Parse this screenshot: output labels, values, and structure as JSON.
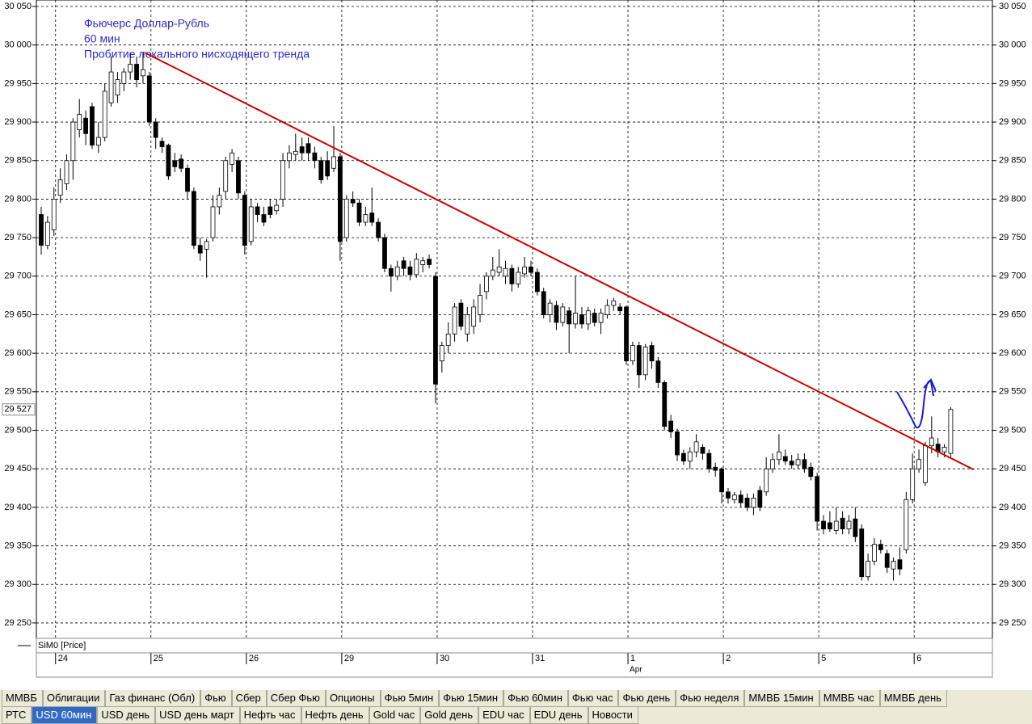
{
  "chart_data": {
    "type": "candlestick",
    "annotation": [
      "Фьючерс Доллар-Рубль",
      "60 мин",
      "Пробитие   локального нисходящего тренда"
    ],
    "legend": "SiM0 [Price]",
    "categories": [
      null,
      null,
      "24",
      null,
      null,
      null,
      null,
      null,
      null,
      null,
      null,
      null,
      null,
      null,
      null,
      null,
      null,
      "25",
      null,
      null,
      null,
      null,
      null,
      null,
      null,
      null,
      null,
      null,
      null,
      null,
      null,
      null,
      "26",
      null,
      null,
      null,
      null,
      null,
      null,
      null,
      null,
      null,
      null,
      null,
      null,
      null,
      null,
      "29",
      null,
      null,
      null,
      null,
      null,
      null,
      null,
      null,
      null,
      null,
      null,
      null,
      null,
      null,
      "30",
      null,
      null,
      null,
      null,
      null,
      null,
      null,
      null,
      null,
      null,
      null,
      null,
      null,
      null,
      "31",
      null,
      null,
      null,
      null,
      null,
      null,
      null,
      null,
      null,
      null,
      null,
      null,
      null,
      null,
      "1",
      null,
      null,
      null,
      null,
      null,
      null,
      null,
      null,
      null,
      null,
      null,
      null,
      null,
      null,
      "2",
      null,
      null,
      null,
      null,
      null,
      null,
      null,
      null,
      null,
      null,
      null,
      null,
      null,
      null,
      "5",
      null,
      null,
      null,
      null,
      null,
      null,
      null,
      null,
      null,
      null,
      null,
      null,
      null,
      null,
      "6",
      null,
      null,
      null,
      null,
      null,
      null
    ],
    "subcategories": [
      null,
      null,
      null,
      null,
      null,
      null,
      null,
      null,
      null,
      null,
      null,
      null,
      null,
      null,
      null,
      null,
      null,
      null,
      null,
      null,
      null,
      null,
      null,
      null,
      null,
      null,
      null,
      null,
      null,
      null,
      null,
      null,
      null,
      null,
      null,
      null,
      null,
      null,
      null,
      null,
      null,
      null,
      null,
      null,
      null,
      null,
      null,
      null,
      null,
      null,
      null,
      null,
      null,
      null,
      null,
      null,
      null,
      null,
      null,
      null,
      null,
      null,
      null,
      null,
      null,
      null,
      null,
      null,
      null,
      null,
      null,
      null,
      null,
      null,
      null,
      null,
      null,
      null,
      null,
      null,
      null,
      null,
      null,
      null,
      null,
      null,
      null,
      null,
      null,
      null,
      null,
      null,
      "Apr",
      null,
      null,
      null,
      null,
      null,
      null,
      null,
      null,
      null,
      null,
      null,
      null,
      null,
      null,
      null,
      null,
      null,
      null,
      null,
      null,
      null,
      null,
      null,
      null,
      null,
      null,
      null,
      null,
      null,
      null,
      null,
      null,
      null,
      null,
      null,
      null,
      null,
      null,
      null,
      null,
      null,
      null,
      null,
      null,
      null,
      null,
      null,
      null,
      null,
      null,
      null,
      null,
      null,
      null
    ],
    "ohlc": [
      [
        29780,
        29790,
        29728,
        29740
      ],
      [
        29740,
        29778,
        29735,
        29770
      ],
      [
        29760,
        29815,
        29752,
        29800
      ],
      [
        29805,
        29840,
        29795,
        29825
      ],
      [
        29820,
        29858,
        29812,
        29850
      ],
      [
        29850,
        29905,
        29825,
        29900
      ],
      [
        29890,
        29930,
        29880,
        29910
      ],
      [
        29905,
        29915,
        29870,
        29885
      ],
      [
        29920,
        29925,
        29865,
        29870
      ],
      [
        29870,
        29900,
        29860,
        29880
      ],
      [
        29880,
        29950,
        29875,
        29940
      ],
      [
        29925,
        29985,
        29920,
        29965
      ],
      [
        29935,
        29965,
        29925,
        29955
      ],
      [
        29950,
        29970,
        29940,
        29965
      ],
      [
        29965,
        29990,
        29955,
        29975
      ],
      [
        29975,
        29985,
        29945,
        29955
      ],
      [
        29960,
        29990,
        29950,
        29968
      ],
      [
        29960,
        29965,
        29895,
        29900
      ],
      [
        29900,
        29905,
        29865,
        29880
      ],
      [
        29875,
        29880,
        29860,
        29868
      ],
      [
        29870,
        29872,
        29825,
        29830
      ],
      [
        29850,
        29860,
        29835,
        29842
      ],
      [
        29852,
        29858,
        29835,
        29840
      ],
      [
        29840,
        29845,
        29800,
        29810
      ],
      [
        29810,
        29815,
        29735,
        29740
      ],
      [
        29740,
        29750,
        29720,
        29730
      ],
      [
        29735,
        29748,
        29698,
        29745
      ],
      [
        29750,
        29805,
        29745,
        29790
      ],
      [
        29790,
        29815,
        29780,
        29805
      ],
      [
        29810,
        29855,
        29800,
        29850
      ],
      [
        29845,
        29865,
        29835,
        29860
      ],
      [
        29850,
        29855,
        29800,
        29808
      ],
      [
        29805,
        29810,
        29728,
        29740
      ],
      [
        29745,
        29800,
        29740,
        29790
      ],
      [
        29790,
        29795,
        29770,
        29780
      ],
      [
        29780,
        29790,
        29765,
        29770
      ],
      [
        29790,
        29800,
        29775,
        29780
      ],
      [
        29785,
        29800,
        29780,
        29792
      ],
      [
        29800,
        29860,
        29790,
        29850
      ],
      [
        29850,
        29870,
        29840,
        29860
      ],
      [
        29858,
        29885,
        29850,
        29862
      ],
      [
        29868,
        29880,
        29850,
        29860
      ],
      [
        29872,
        29880,
        29850,
        29860
      ],
      [
        29860,
        29868,
        29840,
        29850
      ],
      [
        29850,
        29855,
        29820,
        29825
      ],
      [
        29850,
        29862,
        29825,
        29830
      ],
      [
        29840,
        29895,
        29835,
        29855
      ],
      [
        29855,
        29860,
        29720,
        29745
      ],
      [
        29750,
        29805,
        29745,
        29800
      ],
      [
        29800,
        29810,
        29790,
        29795
      ],
      [
        29795,
        29800,
        29765,
        29770
      ],
      [
        29770,
        29790,
        29765,
        29780
      ],
      [
        29782,
        29815,
        29765,
        29770
      ],
      [
        29770,
        29775,
        29745,
        29750
      ],
      [
        29750,
        29755,
        29705,
        29710
      ],
      [
        29710,
        29715,
        29680,
        29700
      ],
      [
        29700,
        29720,
        29695,
        29712
      ],
      [
        29720,
        29725,
        29700,
        29710
      ],
      [
        29712,
        29720,
        29695,
        29702
      ],
      [
        29702,
        29730,
        29698,
        29722
      ],
      [
        29715,
        29725,
        29705,
        29720
      ],
      [
        29722,
        29728,
        29710,
        29715
      ],
      [
        29700,
        29705,
        29535,
        29560
      ],
      [
        29590,
        29615,
        29575,
        29610
      ],
      [
        29610,
        29640,
        29600,
        29625
      ],
      [
        29625,
        29665,
        29615,
        29660
      ],
      [
        29665,
        29670,
        29630,
        29635
      ],
      [
        29625,
        29660,
        29615,
        29650
      ],
      [
        29635,
        29670,
        29625,
        29660
      ],
      [
        29650,
        29690,
        29640,
        29675
      ],
      [
        29680,
        29705,
        29670,
        29700
      ],
      [
        29700,
        29725,
        29695,
        29708
      ],
      [
        29705,
        29735,
        29700,
        29712
      ],
      [
        29700,
        29720,
        29690,
        29710
      ],
      [
        29710,
        29715,
        29680,
        29690
      ],
      [
        29690,
        29712,
        29685,
        29705
      ],
      [
        29703,
        29725,
        29698,
        29712
      ],
      [
        29712,
        29720,
        29700,
        29705
      ],
      [
        29705,
        29710,
        29675,
        29680
      ],
      [
        29680,
        29685,
        29645,
        29650
      ],
      [
        29650,
        29670,
        29640,
        29665
      ],
      [
        29662,
        29668,
        29630,
        29640
      ],
      [
        29640,
        29665,
        29635,
        29660
      ],
      [
        29655,
        29660,
        29600,
        29638
      ],
      [
        29638,
        29700,
        29632,
        29652
      ],
      [
        29650,
        29660,
        29632,
        29638
      ],
      [
        29638,
        29660,
        29630,
        29655
      ],
      [
        29652,
        29658,
        29635,
        29640
      ],
      [
        29640,
        29658,
        29625,
        29652
      ],
      [
        29650,
        29670,
        29645,
        29662
      ],
      [
        29662,
        29672,
        29655,
        29668
      ],
      [
        29660,
        29665,
        29650,
        29655
      ],
      [
        29660,
        29662,
        29585,
        29590
      ],
      [
        29590,
        29615,
        29585,
        29610
      ],
      [
        29610,
        29615,
        29555,
        29572
      ],
      [
        29572,
        29612,
        29565,
        29608
      ],
      [
        29610,
        29615,
        29580,
        29590
      ],
      [
        29590,
        29595,
        29555,
        29562
      ],
      [
        29562,
        29565,
        29500,
        29505
      ],
      [
        29512,
        29520,
        29490,
        29498
      ],
      [
        29498,
        29502,
        29460,
        29468
      ],
      [
        29470,
        29475,
        29455,
        29460
      ],
      [
        29460,
        29478,
        29450,
        29472
      ],
      [
        29472,
        29495,
        29465,
        29485
      ],
      [
        29478,
        29482,
        29462,
        29470
      ],
      [
        29470,
        29475,
        29445,
        29450
      ],
      [
        29452,
        29458,
        29440,
        29448
      ],
      [
        29450,
        29452,
        29405,
        29420
      ],
      [
        29420,
        29425,
        29405,
        29412
      ],
      [
        29410,
        29420,
        29405,
        29416
      ],
      [
        29416,
        29422,
        29400,
        29406
      ],
      [
        29412,
        29418,
        29395,
        29400
      ],
      [
        29400,
        29418,
        29390,
        29412
      ],
      [
        29422,
        29428,
        29395,
        29400
      ],
      [
        29420,
        29465,
        29415,
        29450
      ],
      [
        29450,
        29470,
        29445,
        29462
      ],
      [
        29462,
        29495,
        29455,
        29472
      ],
      [
        29466,
        29475,
        29455,
        29460
      ],
      [
        29460,
        29468,
        29450,
        29455
      ],
      [
        29455,
        29470,
        29450,
        29462
      ],
      [
        29462,
        29470,
        29445,
        29450
      ],
      [
        29452,
        29458,
        29435,
        29440
      ],
      [
        29440,
        29445,
        29370,
        29382
      ],
      [
        29382,
        29390,
        29365,
        29372
      ],
      [
        29380,
        29395,
        29368,
        29372
      ],
      [
        29370,
        29400,
        29365,
        29382
      ],
      [
        29386,
        29395,
        29365,
        29372
      ],
      [
        29372,
        29390,
        29365,
        29382
      ],
      [
        29385,
        29400,
        29355,
        29362
      ],
      [
        29372,
        29378,
        29305,
        29310
      ],
      [
        29310,
        29340,
        29305,
        29330
      ],
      [
        29330,
        29360,
        29325,
        29352
      ],
      [
        29352,
        29358,
        29340,
        29345
      ],
      [
        29340,
        29345,
        29315,
        29322
      ],
      [
        29320,
        29335,
        29305,
        29330
      ],
      [
        29332,
        29348,
        29312,
        29320
      ],
      [
        29345,
        29420,
        29340,
        29410
      ],
      [
        29410,
        29470,
        29405,
        29450
      ],
      [
        29450,
        29475,
        29445,
        29462
      ],
      [
        29432,
        29485,
        29428,
        29480
      ],
      [
        29480,
        29518,
        29470,
        29490
      ],
      [
        29482,
        29490,
        29465,
        29472
      ],
      [
        29472,
        29482,
        29465,
        29478
      ],
      [
        29470,
        29530,
        29465,
        29527
      ]
    ],
    "up_color": "#ffffff",
    "down_color": "#000000",
    "ylim": [
      29230,
      30050
    ],
    "yticks": [
      {
        "value": 29250,
        "label": "29 250"
      },
      {
        "value": 29300,
        "label": "29 300"
      },
      {
        "value": 29350,
        "label": "29 350"
      },
      {
        "value": 29400,
        "label": "29 400"
      },
      {
        "value": 29450,
        "label": "29 450"
      },
      {
        "value": 29500,
        "label": "29 500"
      },
      {
        "value": 29550,
        "label": "29 550"
      },
      {
        "value": 29600,
        "label": "29 600"
      },
      {
        "value": 29650,
        "label": "29 650"
      },
      {
        "value": 29700,
        "label": "29 700"
      },
      {
        "value": 29750,
        "label": "29 750"
      },
      {
        "value": 29800,
        "label": "29 800"
      },
      {
        "value": 29850,
        "label": "29 850"
      },
      {
        "value": 29900,
        "label": "29 900"
      },
      {
        "value": 29950,
        "label": "29 950"
      },
      {
        "value": 30000,
        "label": "30 000"
      },
      {
        "value": 30050,
        "label": "30 050"
      }
    ],
    "last_price": {
      "value": 29527,
      "label": "29 527"
    },
    "trend_line": {
      "color": "#cc0000",
      "start": [
        16.3,
        29990
      ],
      "end": [
        146.6,
        29449
      ]
    },
    "grid": true
  },
  "tabs": [
    [
      "ММВБ",
      "Облигации",
      "Газ финанс (Обл)",
      "Фью",
      "Сбер",
      "Сбер Фью",
      "Опционы",
      "Фью 5мин",
      "Фью 15мин",
      "Фью 60мин",
      "Фью час",
      "Фью день",
      "Фью неделя",
      "ММВБ 15мин",
      "ММВБ час",
      "ММВБ день"
    ],
    [
      "РТС",
      "USD 60мин",
      "USD день",
      "USD день март",
      "Нефть час",
      "Нефть день",
      "Gold час",
      "Gold день",
      "EDU час",
      "EDU день",
      "Новости"
    ]
  ],
  "active_tab": [
    1,
    1
  ]
}
